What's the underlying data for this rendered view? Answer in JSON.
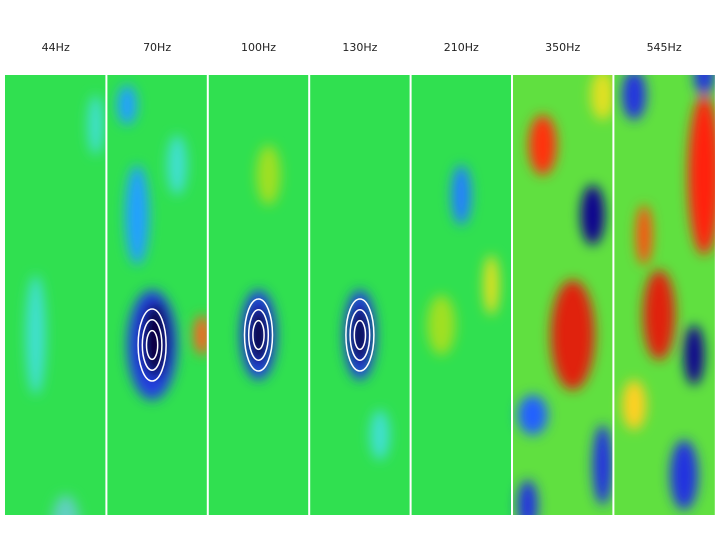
{
  "panels": [
    {
      "label": "44Hz"
    },
    {
      "label": "70Hz"
    },
    {
      "label": "100Hz"
    },
    {
      "label": "130Hz"
    },
    {
      "label": "210Hz"
    },
    {
      "label": "350Hz"
    },
    {
      "label": "545Hz"
    }
  ]
}
